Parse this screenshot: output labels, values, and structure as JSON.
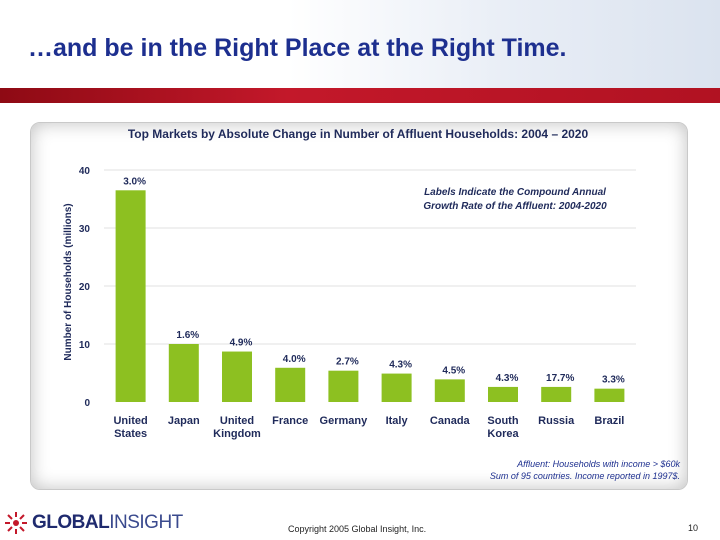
{
  "slide": {
    "title": "…and be in the Right Place at the Right Time.",
    "copyright": "Copyright 2005 Global Insight, Inc.",
    "page_number": "10",
    "logo": {
      "text_bold": "GLOBAL",
      "text_thin": "INSIGHT"
    },
    "footnote": [
      "Affluent: Households with income > $60k",
      "Sum of 95 countries.   Income reported in 1997$."
    ]
  },
  "colors": {
    "title": "#1d2f8f",
    "bar": "#8dc021",
    "red_bar": "#b11222"
  },
  "chart_data": {
    "type": "bar",
    "title": "Top Markets by Absolute Change in Number of Affluent Households: 2004 – 2020",
    "ylabel": "Number of Households (millions)",
    "xlabel": "",
    "annotation": [
      "Labels Indicate the Compound Annual",
      "Growth Rate of the Affluent: 2004-2020"
    ],
    "ylim": [
      0,
      40
    ],
    "yticks": [
      "0",
      "10",
      "20",
      "30",
      "40"
    ],
    "categories": [
      [
        "United",
        "States"
      ],
      [
        "Japan"
      ],
      [
        "United",
        "Kingdom"
      ],
      [
        "France"
      ],
      [
        "Germany"
      ],
      [
        "Italy"
      ],
      [
        "Canada"
      ],
      [
        "South",
        "Korea"
      ],
      [
        "Russia"
      ],
      [
        "Brazil"
      ]
    ],
    "values": [
      36.5,
      10.0,
      8.7,
      5.9,
      5.4,
      4.9,
      3.9,
      2.6,
      2.6,
      2.3
    ],
    "data_labels": [
      "3.0%",
      "1.6%",
      "4.9%",
      "4.0%",
      "2.7%",
      "4.3%",
      "4.5%",
      "4.3%",
      "17.7%",
      "3.3%"
    ],
    "grid": true,
    "legend": "none"
  }
}
